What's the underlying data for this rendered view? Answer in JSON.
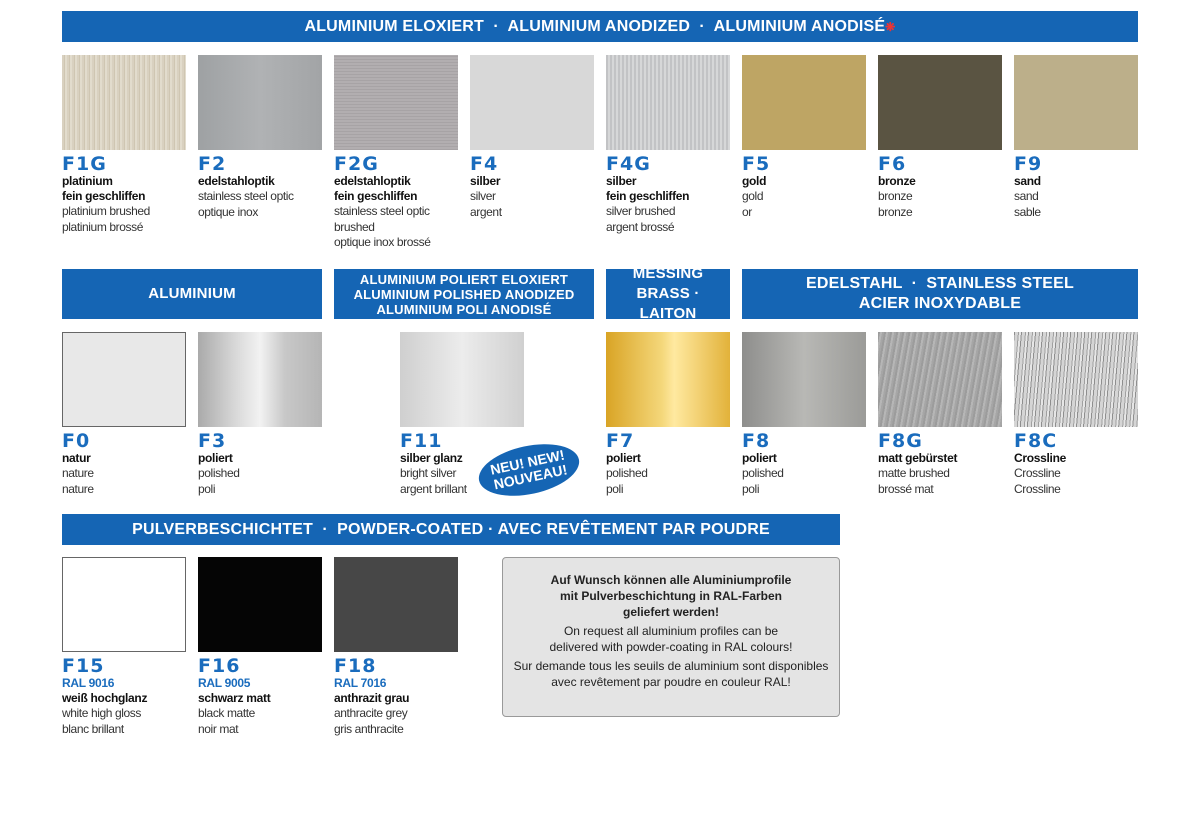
{
  "headers": {
    "anodized": "ALUMINIUM ELOXIERT  ·  ALUMINIUM ANODIZED  ·  ALUMINIUM ANODISÉ",
    "anodized_mark": "❋",
    "aluminium": "ALUMINIUM",
    "polished_anodized": [
      "ALUMINIUM POLIERT ELOXIERT",
      "ALUMINIUM POLISHED ANODIZED",
      "ALUMINIUM POLI ANODISÉ"
    ],
    "brass": [
      "MESSING",
      "BRASS · LAITON"
    ],
    "stainless": [
      "EDELSTAHL  ·  STAINLESS STEEL",
      "ACIER INOXYDABLE"
    ],
    "powder": "PULVERBESCHICHTET  ·  POWDER-COATED · AVEC REVÊTEMENT PAR POUDRE"
  },
  "colors": {
    "brand_blue": "#1565b4",
    "code_blue": "#1a6cbd"
  },
  "row1": [
    {
      "code": "F1G",
      "de": [
        "platinium",
        "fein geschliffen"
      ],
      "tx": [
        "platinium brushed",
        "platinium brossé"
      ],
      "color": "#d6cdbb"
    },
    {
      "code": "F2",
      "de": [
        "edelstahloptik"
      ],
      "tx": [
        "stainless steel optic",
        "optique inox"
      ],
      "color": "#a5a7a9"
    },
    {
      "code": "F2G",
      "de": [
        "edelstahloptik",
        "fein geschliffen"
      ],
      "tx": [
        "stainless steel optic",
        "brushed",
        "optique inox brossé"
      ],
      "color": "#a9a5a7"
    },
    {
      "code": "F4",
      "de": [
        "silber"
      ],
      "tx": [
        "silver",
        "argent"
      ],
      "color": "#d8d8d8"
    },
    {
      "code": "F4G",
      "de": [
        "silber",
        "fein geschliffen"
      ],
      "tx": [
        "silver brushed",
        "argent brossé"
      ],
      "color": "#c9cacb"
    },
    {
      "code": "F5",
      "de": [
        "gold"
      ],
      "tx": [
        "gold",
        "or"
      ],
      "color": "#bea564"
    },
    {
      "code": "F6",
      "de": [
        "bronze"
      ],
      "tx": [
        "bronze",
        "bronze"
      ],
      "color": "#5a5442"
    },
    {
      "code": "F9",
      "de": [
        "sand"
      ],
      "tx": [
        "sand",
        "sable"
      ],
      "color": "#bcaf8a"
    }
  ],
  "row2": [
    {
      "code": "F0",
      "de": [
        "natur"
      ],
      "tx": [
        "nature",
        "nature"
      ],
      "color": "#e8e8e8"
    },
    {
      "code": "F3",
      "de": [
        "poliert"
      ],
      "tx": [
        "polished",
        "poli"
      ],
      "color": "#c8c8c8"
    },
    {
      "code": "F11",
      "de": [
        "silber glanz"
      ],
      "tx": [
        "bright silver",
        "argent brillant"
      ],
      "color": "#dcdcdc"
    },
    {
      "code": "F7",
      "de": [
        "poliert"
      ],
      "tx": [
        "polished",
        "poli"
      ],
      "color": "#e7b93a"
    },
    {
      "code": "F8",
      "de": [
        "poliert"
      ],
      "tx": [
        "polished",
        "poli"
      ],
      "color": "#a3a3a0"
    },
    {
      "code": "F8G",
      "de": [
        "matt gebürstet"
      ],
      "tx": [
        "matte brushed",
        "brossé mat"
      ],
      "color": "#a8a8a8"
    },
    {
      "code": "F8C",
      "de": [
        "Crossline"
      ],
      "tx": [
        "Crossline",
        "Crossline"
      ],
      "color": "#b8b8b8"
    }
  ],
  "new_badge": [
    "NEU! NEW!",
    "NOUVEAU!"
  ],
  "row3": [
    {
      "code": "F15",
      "ral": "RAL 9016",
      "de": [
        "weiß hochglanz"
      ],
      "tx": [
        "white high gloss",
        "blanc brillant"
      ],
      "color": "#ffffff"
    },
    {
      "code": "F16",
      "ral": "RAL 9005",
      "de": [
        "schwarz matt"
      ],
      "tx": [
        "black matte",
        "noir mat"
      ],
      "color": "#050505"
    },
    {
      "code": "F18",
      "ral": "RAL 7016",
      "de": [
        "anthrazit grau"
      ],
      "tx": [
        "anthracite grey",
        "gris anthracite"
      ],
      "color": "#474747"
    }
  ],
  "note": {
    "de": [
      "Auf Wunsch können alle Aluminiumprofile",
      "mit Pulverbeschichtung in RAL-Farben",
      "geliefert werden!"
    ],
    "en": [
      "On request all aluminium profiles can be",
      "delivered with powder-coating in RAL colours!"
    ],
    "fr": [
      "Sur demande tous les seuils de aluminium sont disponibles",
      "avec revêtement par poudre en couleur RAL!"
    ]
  }
}
